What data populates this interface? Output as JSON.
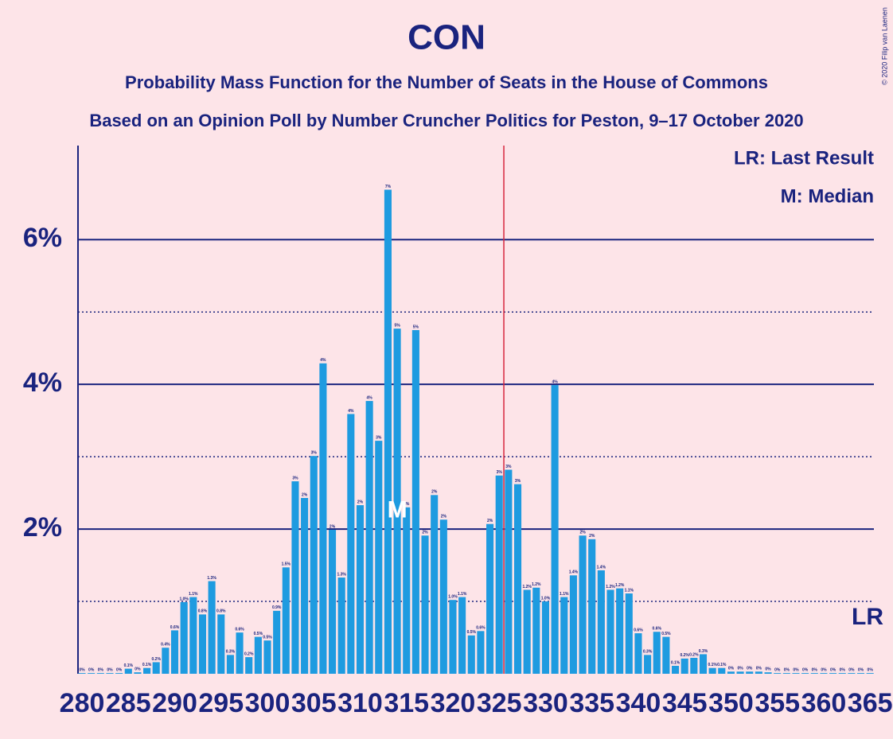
{
  "chart_data": {
    "type": "bar",
    "title": "CON",
    "subtitle": "Probability Mass Function for the Number of Seats in the House of Commons",
    "subtitle2": "Based on an Opinion Poll by Number Cruncher Politics for Peston, 9–17 October 2020",
    "credit": "© 2020 Filip van Laenen",
    "legend_lr": "LR: Last Result",
    "legend_median": "M: Median",
    "median_label": "M",
    "last_result_label": "LR",
    "median": 314,
    "last_result": 365,
    "majority": 326,
    "color": "#1e9be0",
    "majority_color": "#d7263d",
    "grid": true,
    "minor_gridlines": [
      1,
      3,
      5
    ],
    "x": [
      280,
      281,
      282,
      283,
      284,
      285,
      286,
      287,
      288,
      289,
      290,
      291,
      292,
      293,
      294,
      295,
      296,
      297,
      298,
      299,
      300,
      301,
      302,
      303,
      304,
      305,
      306,
      307,
      308,
      309,
      310,
      311,
      312,
      313,
      314,
      315,
      316,
      317,
      318,
      319,
      320,
      321,
      322,
      323,
      324,
      325,
      326,
      327,
      328,
      329,
      330,
      331,
      332,
      333,
      334,
      335,
      336,
      337,
      338,
      339,
      340,
      341,
      342,
      343,
      344,
      345,
      346,
      347,
      348,
      349,
      350,
      351,
      352,
      353,
      354,
      355,
      356,
      357,
      358,
      359,
      360,
      361,
      362,
      363,
      364,
      365
    ],
    "values": [
      0.01,
      0.01,
      0.01,
      0.01,
      0.01,
      0.07,
      0.02,
      0.08,
      0.16,
      0.36,
      0.6,
      0.99,
      1.06,
      0.82,
      1.28,
      0.82,
      0.26,
      0.57,
      0.23,
      0.51,
      0.46,
      0.87,
      1.47,
      2.66,
      2.43,
      3.01,
      4.29,
      1.99,
      1.33,
      3.59,
      2.33,
      3.77,
      3.22,
      6.69,
      4.77,
      2.3,
      4.75,
      1.91,
      2.47,
      2.13,
      1.02,
      1.06,
      0.53,
      0.59,
      2.07,
      2.74,
      2.82,
      2.62,
      1.16,
      1.19,
      1.0,
      3.99,
      1.06,
      1.36,
      1.91,
      1.86,
      1.43,
      1.16,
      1.18,
      1.11,
      0.56,
      0.26,
      0.58,
      0.51,
      0.11,
      0.21,
      0.22,
      0.27,
      0.08,
      0.08,
      0.03,
      0.03,
      0.03,
      0.03,
      0.02,
      0.01,
      0.01,
      0.01,
      0.01,
      0.01,
      0.01,
      0.01,
      0.01,
      0.01,
      0.01,
      0.01
    ],
    "value_labels": [
      "0%",
      "0%",
      "0%",
      "0%",
      "0%",
      "0.1%",
      "0%",
      "0.1%",
      "0.2%",
      "0.4%",
      "0.6%",
      "1.0%",
      "1.1%",
      "0.8%",
      "1.3%",
      "0.8%",
      "0.3%",
      "0.6%",
      "0.2%",
      "0.5%",
      "0.5%",
      "0.9%",
      "1.5%",
      "3%",
      "2%",
      "3%",
      "4%",
      "2%",
      "1.3%",
      "4%",
      "2%",
      "4%",
      "3%",
      "7%",
      "5%",
      "2%",
      "5%",
      "2%",
      "2%",
      "2%",
      "1.0%",
      "1.1%",
      "0.5%",
      "0.6%",
      "2%",
      "3%",
      "3%",
      "3%",
      "1.2%",
      "1.2%",
      "1.0%",
      "4%",
      "1.1%",
      "1.4%",
      "2%",
      "2%",
      "1.4%",
      "1.2%",
      "1.2%",
      "1.1%",
      "0.6%",
      "0.3%",
      "0.6%",
      "0.5%",
      "0.1%",
      "0.2%",
      "0.2%",
      "0.3%",
      "0.1%",
      "0.1%",
      "0%",
      "0%",
      "0%",
      "0%",
      "0%",
      "0%",
      "0%",
      "0%",
      "0%",
      "0%",
      "0%",
      "0%",
      "0%",
      "0%",
      "0%",
      "0%"
    ],
    "xlim": [
      279.5,
      365.5
    ],
    "xticks": [
      280,
      285,
      290,
      295,
      300,
      305,
      310,
      315,
      320,
      325,
      330,
      335,
      340,
      345,
      350,
      355,
      360,
      365
    ],
    "ylim": [
      0,
      7.3
    ],
    "yticks": [
      {
        "value": 2,
        "label": "2%"
      },
      {
        "value": 4,
        "label": "4%"
      },
      {
        "value": 6,
        "label": "6%"
      }
    ]
  }
}
